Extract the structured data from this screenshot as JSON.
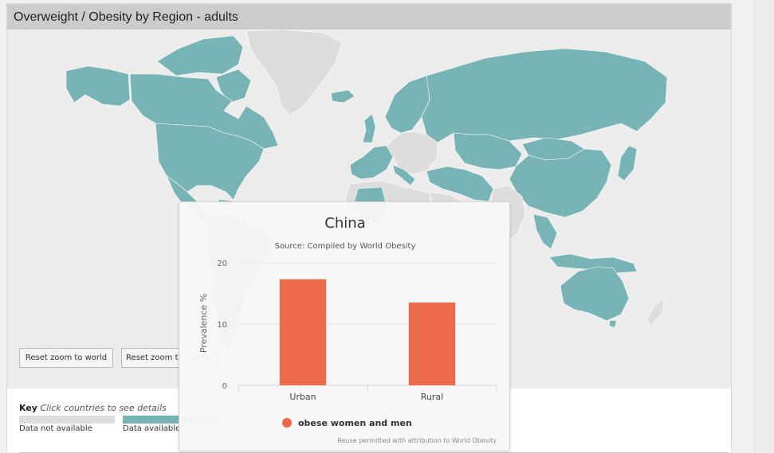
{
  "panel": {
    "title": "Overweight / Obesity by Region - adults"
  },
  "buttons": {
    "reset_world": "Reset zoom to world",
    "reset_europe": "Reset zoom to Europe"
  },
  "key": {
    "title": "Key",
    "hint": "Click countries to see details",
    "items": [
      {
        "label": "Data not available",
        "color": "#dddddd"
      },
      {
        "label": "Data available",
        "color": "#78b4b6"
      }
    ]
  },
  "colors": {
    "land_data": "#78b4b6",
    "land_nodata": "#dddddd",
    "ocean": "#ececec",
    "bar": "#ec6a49"
  },
  "chart_data": {
    "type": "bar",
    "title": "China",
    "subtitle": "Source: Compiled by World Obesity",
    "categories": [
      "Urban",
      "Rural"
    ],
    "series": [
      {
        "name": "obese women and men",
        "values": [
          17.3,
          13.5
        ]
      }
    ],
    "ylabel": "Prevalence %",
    "ylim": [
      0,
      20
    ],
    "yticks": [
      0,
      10,
      20
    ],
    "credit": "Reuse permitted with attribution to World Obesity",
    "grid": true,
    "legend": "bottom"
  }
}
